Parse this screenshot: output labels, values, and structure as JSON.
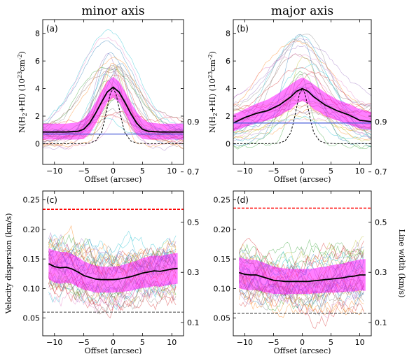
{
  "chart_data": [
    {
      "type": "line",
      "panel": "(a)",
      "title": "minor axis",
      "xlabel": "Offset (arcsec)",
      "ylabel": "N(H2+HI) (10^23 cm^-2)",
      "ylabel_parts": {
        "n": "N(H",
        "sub": "2",
        "plus": "+HI)",
        "unit": "(10",
        "exp": "23",
        "cm": "cm",
        "exp2": "-2",
        "close": ")"
      },
      "xlim": [
        -12,
        12
      ],
      "ylim": [
        -1.5,
        9
      ],
      "xticks": [
        -10,
        -5,
        0,
        5,
        10
      ],
      "xtick_labels": [
        "−10",
        "−5",
        "0",
        "5",
        "10"
      ],
      "yticks": [
        0,
        2,
        4,
        6,
        8
      ],
      "ytick_labels": [
        "0",
        "2",
        "4",
        "6",
        "8"
      ],
      "series": [
        {
          "role": "mean",
          "color": "#000000",
          "x": [
            -12,
            -10,
            -8,
            -6,
            -5,
            -4,
            -3,
            -2,
            -1,
            0,
            1,
            2,
            3,
            4,
            5,
            6,
            8,
            10,
            12
          ],
          "y": [
            0.85,
            0.85,
            0.85,
            0.9,
            1.05,
            1.5,
            2.2,
            3.0,
            3.75,
            4.1,
            3.75,
            3.0,
            2.2,
            1.5,
            1.05,
            0.9,
            0.85,
            0.85,
            0.85
          ]
        },
        {
          "role": "band-upper",
          "color": "#ff00ff",
          "x": [
            -12,
            -10,
            -8,
            -6,
            -5,
            -4,
            -3,
            -2,
            -1,
            0,
            1,
            2,
            3,
            4,
            5,
            6,
            8,
            10,
            12
          ],
          "y": [
            1.45,
            1.45,
            1.45,
            1.55,
            1.8,
            2.3,
            3.0,
            3.8,
            4.5,
            4.85,
            4.5,
            3.8,
            3.0,
            2.3,
            1.8,
            1.55,
            1.45,
            1.45,
            1.45
          ]
        },
        {
          "role": "band-lower",
          "color": "#ff00ff",
          "x": [
            -12,
            -10,
            -8,
            -6,
            -5,
            -4,
            -3,
            -2,
            -1,
            0,
            1,
            2,
            3,
            4,
            5,
            6,
            8,
            10,
            12
          ],
          "y": [
            0.3,
            0.3,
            0.3,
            0.3,
            0.35,
            0.7,
            1.4,
            2.2,
            3.0,
            3.35,
            3.0,
            2.2,
            1.4,
            0.7,
            0.35,
            0.3,
            0.3,
            0.3,
            0.3
          ]
        },
        {
          "role": "gaussian-beam",
          "color": "#000000",
          "dashed": true,
          "x": [
            -12,
            -6,
            -4,
            -3,
            -2,
            -1.5,
            -1,
            -0.5,
            0,
            0.5,
            1,
            1.5,
            2,
            3,
            4,
            6,
            12
          ],
          "y": [
            0,
            0,
            0.05,
            0.2,
            0.8,
            1.6,
            2.6,
            3.6,
            4.0,
            3.6,
            2.6,
            1.6,
            0.8,
            0.2,
            0.05,
            0,
            0
          ]
        },
        {
          "role": "background",
          "color": "#4a5fd8",
          "x": [
            -12,
            12
          ],
          "y": [
            0.7,
            0.7
          ]
        }
      ],
      "individual_profiles_count": 30
    },
    {
      "type": "line",
      "panel": "(b)",
      "title": "major axis",
      "xlabel": "Offset (arcsec)",
      "ylabel": "N(H2+HI) (10^23 cm^-2)",
      "ylabel_parts": {
        "n": "N(H",
        "sub": "2",
        "plus": "+HI)",
        "unit": "(10",
        "exp": "23",
        "cm": "cm",
        "exp2": "-2",
        "close": ")"
      },
      "xlim": [
        -12,
        12
      ],
      "ylim": [
        -1.5,
        9
      ],
      "xticks": [
        -10,
        -5,
        0,
        5,
        10
      ],
      "xtick_labels": [
        "−10",
        "−5",
        "0",
        "5",
        "10"
      ],
      "yticks": [
        0,
        2,
        4,
        6,
        8
      ],
      "ytick_labels": [
        "0",
        "2",
        "4",
        "6",
        "8"
      ],
      "series": [
        {
          "role": "mean",
          "color": "#000000",
          "x": [
            -12,
            -10,
            -8,
            -6,
            -4,
            -3,
            -2,
            -1,
            0,
            1,
            2,
            3,
            4,
            6,
            8,
            10,
            12
          ],
          "y": [
            1.5,
            1.9,
            2.2,
            2.4,
            2.8,
            3.1,
            3.4,
            3.8,
            4.0,
            3.8,
            3.4,
            3.1,
            2.8,
            2.4,
            2.1,
            1.7,
            1.6
          ]
        },
        {
          "role": "band-upper",
          "color": "#ff00ff",
          "x": [
            -12,
            -10,
            -8,
            -6,
            -4,
            -3,
            -2,
            -1,
            0,
            1,
            2,
            3,
            4,
            6,
            8,
            10,
            12
          ],
          "y": [
            2.1,
            2.5,
            2.9,
            3.2,
            3.7,
            4.0,
            4.3,
            4.6,
            4.8,
            4.6,
            4.3,
            4.0,
            3.7,
            3.2,
            2.9,
            2.5,
            2.3
          ]
        },
        {
          "role": "band-lower",
          "color": "#ff00ff",
          "x": [
            -12,
            -10,
            -8,
            -6,
            -4,
            -3,
            -2,
            -1,
            0,
            1,
            2,
            3,
            4,
            6,
            8,
            10,
            12
          ],
          "y": [
            0.9,
            1.2,
            1.5,
            1.7,
            2.0,
            2.3,
            2.5,
            2.9,
            3.1,
            2.9,
            2.5,
            2.3,
            2.0,
            1.7,
            1.4,
            1.1,
            1.0
          ]
        },
        {
          "role": "gaussian-beam",
          "color": "#000000",
          "dashed": true,
          "x": [
            -12,
            -6,
            -4,
            -3,
            -2,
            -1.5,
            -1,
            -0.5,
            0,
            0.5,
            1,
            1.5,
            2,
            3,
            4,
            6,
            12
          ],
          "y": [
            0,
            0,
            0.05,
            0.2,
            0.8,
            1.6,
            2.6,
            3.6,
            4.0,
            3.6,
            2.6,
            1.6,
            0.8,
            0.2,
            0.05,
            0,
            0
          ]
        },
        {
          "role": "background",
          "color": "#4a5fd8",
          "x": [
            -12,
            12
          ],
          "y": [
            1.5,
            1.5
          ]
        }
      ],
      "individual_profiles_count": 30
    },
    {
      "type": "line",
      "panel": "(c)",
      "xlabel": "Offset (arcsec)",
      "ylabel": "Velocity dispersion (km/s)",
      "xlim": [
        -12,
        12
      ],
      "ylim": [
        0.02,
        0.265
      ],
      "xticks": [
        -10,
        -5,
        0,
        5,
        10
      ],
      "xtick_labels": [
        "−10",
        "−5",
        "0",
        "5",
        "10"
      ],
      "yticks": [
        0.05,
        0.1,
        0.15,
        0.2,
        0.25
      ],
      "ytick_labels": [
        "0.05",
        "0.10",
        "0.15",
        "0.20",
        "0.25"
      ],
      "right_yticks": [
        0.1,
        0.3,
        0.5,
        0.7,
        0.9
      ],
      "right_ytick_labels": [
        "0.1",
        "0.3",
        "0.5",
        "0.7",
        "0.9"
      ],
      "right_ylim": [
        0.047,
        0.624
      ],
      "series": [
        {
          "role": "mean",
          "color": "#000000",
          "x": [
            -11,
            -10,
            -9,
            -8,
            -7,
            -6,
            -5,
            -4,
            -3,
            -2,
            -1,
            0,
            1,
            2,
            3,
            4,
            5,
            6,
            7,
            8,
            9,
            10,
            11
          ],
          "y": [
            0.142,
            0.137,
            0.135,
            0.136,
            0.133,
            0.128,
            0.122,
            0.119,
            0.116,
            0.115,
            0.115,
            0.115,
            0.116,
            0.118,
            0.12,
            0.123,
            0.126,
            0.128,
            0.13,
            0.129,
            0.131,
            0.133,
            0.134
          ]
        },
        {
          "role": "band-upper",
          "color": "#ff00ff",
          "x": [
            -11,
            -10,
            -9,
            -8,
            -7,
            -6,
            -5,
            -4,
            -3,
            -2,
            -1,
            0,
            1,
            2,
            3,
            4,
            5,
            6,
            7,
            8,
            9,
            10,
            11
          ],
          "y": [
            0.168,
            0.164,
            0.162,
            0.162,
            0.158,
            0.153,
            0.146,
            0.142,
            0.139,
            0.137,
            0.137,
            0.137,
            0.138,
            0.141,
            0.144,
            0.147,
            0.151,
            0.154,
            0.156,
            0.155,
            0.157,
            0.159,
            0.16
          ]
        },
        {
          "role": "band-lower",
          "color": "#ff00ff",
          "x": [
            -11,
            -10,
            -9,
            -8,
            -7,
            -6,
            -5,
            -4,
            -3,
            -2,
            -1,
            0,
            1,
            2,
            3,
            4,
            5,
            6,
            7,
            8,
            9,
            10,
            11
          ],
          "y": [
            0.116,
            0.11,
            0.108,
            0.11,
            0.108,
            0.103,
            0.098,
            0.096,
            0.093,
            0.093,
            0.093,
            0.093,
            0.094,
            0.095,
            0.096,
            0.099,
            0.101,
            0.102,
            0.104,
            0.103,
            0.105,
            0.107,
            0.108
          ]
        },
        {
          "role": "red-threshold",
          "color": "#ff0000",
          "dashed": true,
          "x": [
            -12,
            12
          ],
          "y": [
            0.234,
            0.234
          ]
        },
        {
          "role": "gray-threshold",
          "color": "#555555",
          "dashed": true,
          "x": [
            -12,
            12
          ],
          "y": [
            0.06,
            0.06
          ]
        }
      ],
      "individual_profiles_count": 35
    },
    {
      "type": "line",
      "panel": "(d)",
      "xlabel": "Offset (arcsec)",
      "ylabel": "Line width (km/s)",
      "xlim": [
        -12,
        12
      ],
      "ylim": [
        0.02,
        0.265
      ],
      "xticks": [
        -10,
        -5,
        0,
        5,
        10
      ],
      "xtick_labels": [
        "−10",
        "−5",
        "0",
        "5",
        "10"
      ],
      "yticks": [
        0.05,
        0.1,
        0.15,
        0.2,
        0.25
      ],
      "ytick_labels": [
        "0.05",
        "0.10",
        "0.15",
        "0.20",
        "0.25"
      ],
      "right_yticks": [
        0.1,
        0.3,
        0.5,
        0.7,
        0.9
      ],
      "right_ytick_labels": [
        "0.1",
        "0.3",
        "0.5",
        "0.7",
        "0.9"
      ],
      "right_ylim": [
        0.047,
        0.624
      ],
      "series": [
        {
          "role": "mean",
          "color": "#000000",
          "x": [
            -11,
            -10,
            -9,
            -8,
            -7,
            -6,
            -5,
            -4,
            -3,
            -2,
            -1,
            0,
            1,
            2,
            3,
            4,
            5,
            6,
            7,
            8,
            9,
            10,
            11
          ],
          "y": [
            0.127,
            0.124,
            0.123,
            0.123,
            0.12,
            0.117,
            0.114,
            0.113,
            0.112,
            0.112,
            0.112,
            0.112,
            0.112,
            0.113,
            0.114,
            0.115,
            0.116,
            0.117,
            0.118,
            0.12,
            0.121,
            0.123,
            0.123
          ]
        },
        {
          "role": "band-upper",
          "color": "#ff00ff",
          "x": [
            -11,
            -10,
            -9,
            -8,
            -7,
            -6,
            -5,
            -4,
            -3,
            -2,
            -1,
            0,
            1,
            2,
            3,
            4,
            5,
            6,
            7,
            8,
            9,
            10,
            11
          ],
          "y": [
            0.153,
            0.15,
            0.149,
            0.148,
            0.145,
            0.141,
            0.137,
            0.135,
            0.134,
            0.133,
            0.133,
            0.133,
            0.133,
            0.134,
            0.136,
            0.137,
            0.139,
            0.141,
            0.142,
            0.145,
            0.147,
            0.149,
            0.15
          ]
        },
        {
          "role": "band-lower",
          "color": "#ff00ff",
          "x": [
            -11,
            -10,
            -9,
            -8,
            -7,
            -6,
            -5,
            -4,
            -3,
            -2,
            -1,
            0,
            1,
            2,
            3,
            4,
            5,
            6,
            7,
            8,
            9,
            10,
            11
          ],
          "y": [
            0.101,
            0.098,
            0.097,
            0.098,
            0.095,
            0.093,
            0.091,
            0.091,
            0.09,
            0.091,
            0.091,
            0.091,
            0.091,
            0.092,
            0.092,
            0.093,
            0.093,
            0.093,
            0.094,
            0.095,
            0.095,
            0.097,
            0.096
          ]
        },
        {
          "role": "red-threshold",
          "color": "#ff0000",
          "dashed": true,
          "x": [
            -12,
            12
          ],
          "y": [
            0.236,
            0.236
          ]
        },
        {
          "role": "gray-threshold",
          "color": "#555555",
          "dashed": true,
          "x": [
            -12,
            12
          ],
          "y": [
            0.058,
            0.058
          ]
        }
      ],
      "individual_profiles_count": 35
    }
  ]
}
